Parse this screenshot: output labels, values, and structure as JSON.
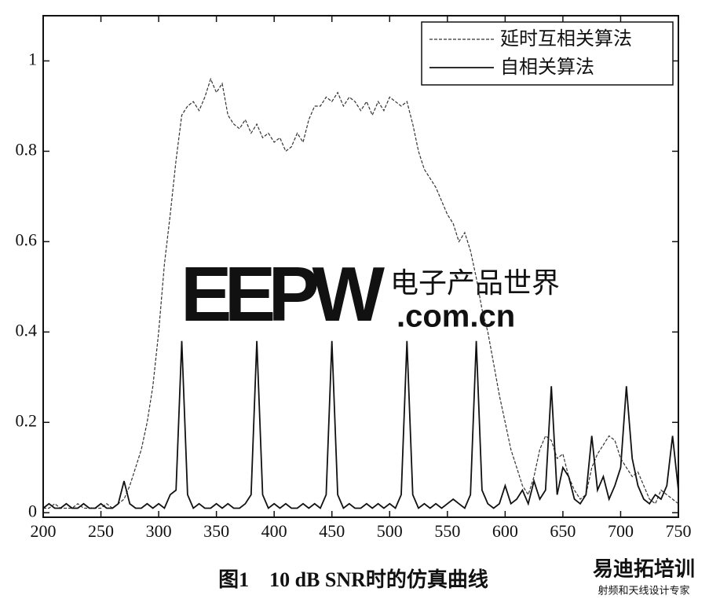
{
  "chart_data": {
    "type": "line",
    "caption": "图1　10 dB SNR时的仿真曲线",
    "x": [
      200,
      205,
      210,
      215,
      220,
      225,
      230,
      235,
      240,
      245,
      250,
      255,
      260,
      265,
      270,
      275,
      280,
      285,
      290,
      295,
      300,
      305,
      310,
      315,
      320,
      325,
      330,
      335,
      340,
      345,
      350,
      355,
      360,
      365,
      370,
      375,
      380,
      385,
      390,
      395,
      400,
      405,
      410,
      415,
      420,
      425,
      430,
      435,
      440,
      445,
      450,
      455,
      460,
      465,
      470,
      475,
      480,
      485,
      490,
      495,
      500,
      505,
      510,
      515,
      520,
      525,
      530,
      535,
      540,
      545,
      550,
      555,
      560,
      565,
      570,
      575,
      580,
      585,
      590,
      595,
      600,
      605,
      610,
      615,
      620,
      625,
      630,
      635,
      640,
      645,
      650,
      655,
      660,
      665,
      670,
      675,
      680,
      685,
      690,
      695,
      700,
      705,
      710,
      715,
      720,
      725,
      730,
      735,
      740,
      745,
      750
    ],
    "series": [
      {
        "name": "延时互相关算法",
        "color": "#333333",
        "dash": true,
        "values": [
          0.01,
          0.01,
          0.02,
          0.01,
          0.01,
          0.01,
          0.02,
          0.01,
          0.01,
          0.01,
          0.01,
          0.02,
          0.01,
          0.02,
          0.03,
          0.06,
          0.1,
          0.14,
          0.2,
          0.28,
          0.4,
          0.55,
          0.66,
          0.78,
          0.88,
          0.9,
          0.91,
          0.89,
          0.92,
          0.96,
          0.93,
          0.95,
          0.88,
          0.86,
          0.85,
          0.87,
          0.84,
          0.86,
          0.83,
          0.84,
          0.82,
          0.83,
          0.8,
          0.81,
          0.84,
          0.82,
          0.87,
          0.9,
          0.9,
          0.92,
          0.91,
          0.93,
          0.9,
          0.92,
          0.91,
          0.89,
          0.91,
          0.88,
          0.91,
          0.89,
          0.92,
          0.91,
          0.9,
          0.91,
          0.86,
          0.8,
          0.76,
          0.74,
          0.72,
          0.69,
          0.66,
          0.64,
          0.6,
          0.62,
          0.58,
          0.52,
          0.45,
          0.4,
          0.33,
          0.26,
          0.2,
          0.14,
          0.1,
          0.06,
          0.04,
          0.08,
          0.14,
          0.17,
          0.16,
          0.12,
          0.13,
          0.08,
          0.05,
          0.03,
          0.04,
          0.1,
          0.13,
          0.15,
          0.17,
          0.16,
          0.12,
          0.1,
          0.08,
          0.09,
          0.06,
          0.03,
          0.02,
          0.05,
          0.04,
          0.03,
          0.02
        ]
      },
      {
        "name": "自相关算法",
        "color": "#111111",
        "dash": false,
        "values": [
          0.01,
          0.02,
          0.01,
          0.01,
          0.02,
          0.01,
          0.01,
          0.02,
          0.01,
          0.01,
          0.02,
          0.01,
          0.01,
          0.02,
          0.07,
          0.02,
          0.01,
          0.01,
          0.02,
          0.01,
          0.02,
          0.01,
          0.04,
          0.05,
          0.38,
          0.04,
          0.01,
          0.02,
          0.01,
          0.01,
          0.02,
          0.01,
          0.02,
          0.01,
          0.01,
          0.02,
          0.04,
          0.38,
          0.04,
          0.01,
          0.02,
          0.01,
          0.02,
          0.01,
          0.01,
          0.02,
          0.01,
          0.02,
          0.01,
          0.04,
          0.38,
          0.04,
          0.01,
          0.02,
          0.01,
          0.01,
          0.02,
          0.01,
          0.02,
          0.01,
          0.02,
          0.01,
          0.04,
          0.38,
          0.04,
          0.01,
          0.02,
          0.01,
          0.02,
          0.01,
          0.02,
          0.03,
          0.02,
          0.01,
          0.04,
          0.38,
          0.05,
          0.02,
          0.01,
          0.02,
          0.06,
          0.02,
          0.03,
          0.05,
          0.02,
          0.07,
          0.03,
          0.05,
          0.28,
          0.04,
          0.1,
          0.08,
          0.03,
          0.02,
          0.04,
          0.17,
          0.05,
          0.08,
          0.03,
          0.06,
          0.1,
          0.28,
          0.12,
          0.06,
          0.03,
          0.02,
          0.04,
          0.03,
          0.06,
          0.17,
          0.05
        ]
      }
    ],
    "xlim": [
      200,
      750
    ],
    "xticks": [
      200,
      250,
      300,
      350,
      400,
      450,
      500,
      550,
      600,
      650,
      700,
      750
    ],
    "ylim": [
      -0.01,
      1.1
    ],
    "yticks": [
      0,
      0.2,
      0.4,
      0.6,
      0.8,
      1
    ],
    "legend": "upper right",
    "watermark": {
      "logo": "EEPW",
      "cn": "电子产品世界",
      "domain": ".com.cn",
      "brand": "易迪拓培训",
      "slogan": "射频和天线设计专家"
    }
  }
}
